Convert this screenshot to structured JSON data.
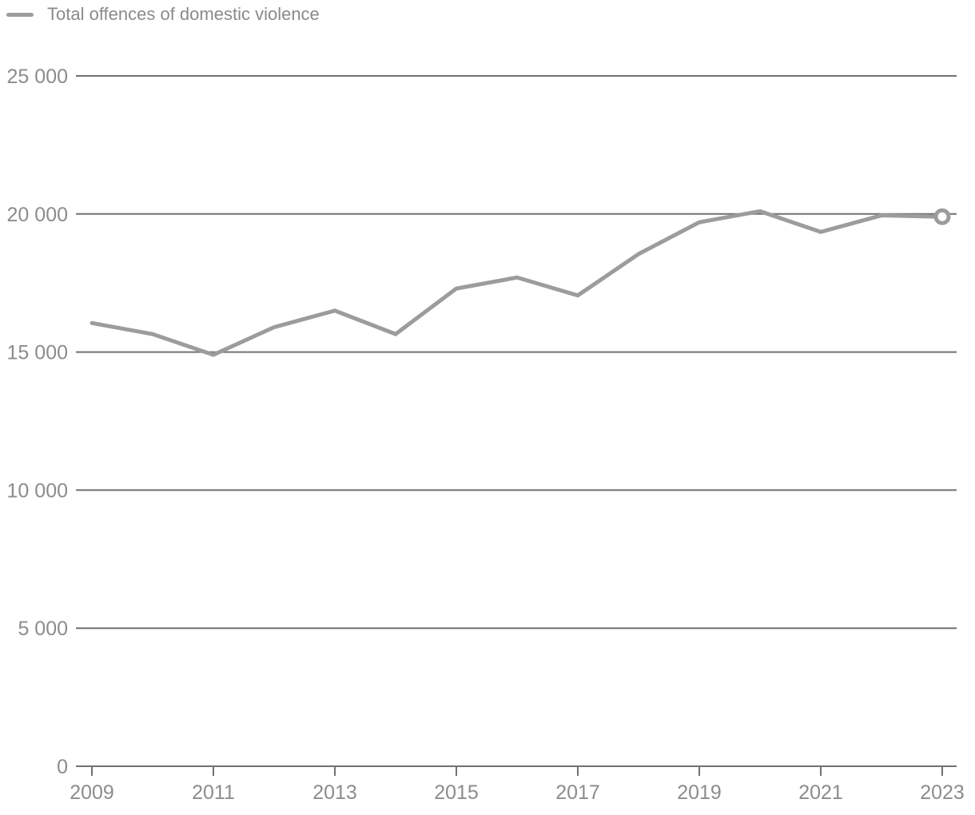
{
  "legend": {
    "label": "Total offences of domestic violence"
  },
  "chart_data": {
    "type": "line",
    "title": "",
    "xlabel": "",
    "ylabel": "",
    "x": [
      2009,
      2010,
      2011,
      2012,
      2013,
      2014,
      2015,
      2016,
      2017,
      2018,
      2019,
      2020,
      2021,
      2022,
      2023
    ],
    "series": [
      {
        "name": "Total offences of domestic violence",
        "values": [
          16050,
          15650,
          14900,
          15900,
          16500,
          15650,
          17300,
          17700,
          17050,
          18550,
          19700,
          20100,
          19350,
          19950,
          19900
        ]
      }
    ],
    "xlim": [
      2009,
      2023
    ],
    "ylim": [
      0,
      25000
    ],
    "yticks": [
      {
        "value": 0,
        "label": "0"
      },
      {
        "value": 5000,
        "label": "5 000"
      },
      {
        "value": 10000,
        "label": "10 000"
      },
      {
        "value": 15000,
        "label": "15 000"
      },
      {
        "value": 20000,
        "label": "20 000"
      },
      {
        "value": 25000,
        "label": "25 000"
      }
    ],
    "xticks": [
      {
        "value": 2009,
        "label": "2009"
      },
      {
        "value": 2011,
        "label": "2011"
      },
      {
        "value": 2013,
        "label": "2013"
      },
      {
        "value": 2015,
        "label": "2015"
      },
      {
        "value": 2017,
        "label": "2017"
      },
      {
        "value": 2019,
        "label": "2019"
      },
      {
        "value": 2021,
        "label": "2021"
      },
      {
        "value": 2023,
        "label": "2023"
      }
    ],
    "grid": "horizontal",
    "legend_position": "top-left",
    "last_point_marker": "open-circle",
    "colors": {
      "series": "#9c9c9c",
      "grid": "#717171",
      "text": "#8c8c8c",
      "marker_fill": "#ffffff"
    }
  }
}
